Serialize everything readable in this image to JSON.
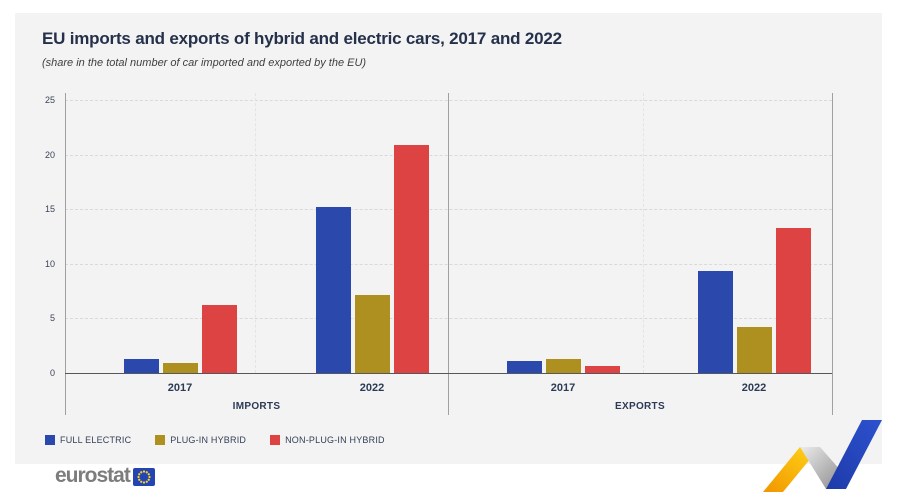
{
  "chart_data": {
    "type": "bar",
    "title": "EU imports and exports of hybrid and electric cars, 2017 and 2022",
    "subtitle": "(share in the total number of car imported and exported by the EU)",
    "ylim": [
      0,
      25
    ],
    "yticks": [
      0,
      5,
      10,
      15,
      20,
      25
    ],
    "grid": "horizontal dashed lines at each y tick, dashed vertical separator between year groups",
    "legend_position": "bottom-left",
    "series": [
      {
        "name": "FULL ELECTRIC",
        "color": "#2b48ad"
      },
      {
        "name": "PLUG-IN HYBRID",
        "color": "#ad901f"
      },
      {
        "name": "NON-PLUG-IN HYBRID",
        "color": "#de4343"
      }
    ],
    "panels": [
      {
        "label": "IMPORTS",
        "groups": [
          {
            "category": "2017",
            "values": [
              1.3,
              0.9,
              6.2
            ]
          },
          {
            "category": "2022",
            "values": [
              15.2,
              7.1,
              20.9
            ]
          }
        ]
      },
      {
        "label": "EXPORTS",
        "groups": [
          {
            "category": "2017",
            "values": [
              1.1,
              1.3,
              0.6
            ]
          },
          {
            "category": "2022",
            "values": [
              9.3,
              4.2,
              13.3
            ]
          }
        ]
      }
    ]
  },
  "footer": {
    "logo_text": "eurostat",
    "eu_flag_blue": "#2344b5",
    "eu_star_yellow": "#ffd617"
  },
  "decoration": {
    "name": "zigzag-trend",
    "colors": [
      "#f9b000",
      "#9a9a9a",
      "#2a4fc4"
    ]
  }
}
